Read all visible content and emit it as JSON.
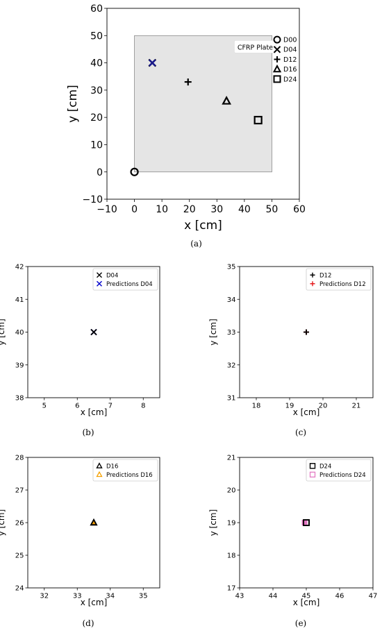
{
  "chart_data": [
    {
      "id": "a",
      "type": "scatter",
      "caption": "(a)",
      "xlabel": "x [cm]",
      "ylabel": "y [cm]",
      "xlim": [
        -10,
        60
      ],
      "ylim": [
        -10,
        60
      ],
      "xticks": [
        -10,
        0,
        10,
        20,
        30,
        40,
        50,
        60
      ],
      "yticks": [
        -10,
        0,
        10,
        20,
        30,
        40,
        50,
        60
      ],
      "xtick_labels": [
        "−10",
        "0",
        "10",
        "20",
        "30",
        "40",
        "50",
        "60"
      ],
      "ytick_labels": [
        "−10",
        "0",
        "10",
        "20",
        "30",
        "40",
        "50",
        "60"
      ],
      "grid": false,
      "plate": {
        "x": [
          0,
          50
        ],
        "y": [
          0,
          50
        ],
        "label": "CFRP Plate",
        "color": "#e5e5e5"
      },
      "legend_position": "outside-right",
      "series": [
        {
          "name": "D00",
          "marker": "circle",
          "x": 0,
          "y": 0,
          "color": "#000000"
        },
        {
          "name": "D04",
          "marker": "x",
          "x": 6.5,
          "y": 40,
          "color": "#000000"
        },
        {
          "name": "",
          "marker": "x",
          "x": 6.5,
          "y": 40,
          "color": "#1a1a8a"
        },
        {
          "name": "D12",
          "marker": "plus",
          "x": 19.5,
          "y": 33,
          "color": "#000000"
        },
        {
          "name": "D16",
          "marker": "triangle",
          "x": 33.5,
          "y": 26,
          "color": "#000000"
        },
        {
          "name": "D24",
          "marker": "square",
          "x": 45,
          "y": 19,
          "color": "#000000"
        }
      ]
    },
    {
      "id": "b",
      "type": "scatter",
      "caption": "(b)",
      "xlabel": "x [cm]",
      "ylabel": "y [cm]",
      "xlim": [
        4.5,
        8.5
      ],
      "ylim": [
        38,
        42
      ],
      "xticks": [
        5,
        6,
        7,
        8
      ],
      "yticks": [
        38,
        39,
        40,
        41,
        42
      ],
      "legend_position": "top-right",
      "series": [
        {
          "name": "D04",
          "marker": "x",
          "x": 6.5,
          "y": 40,
          "color": "#000000"
        },
        {
          "name": "Predictions D04",
          "marker": "x",
          "x": 6.5,
          "y": 40,
          "color": "#0000cc"
        }
      ]
    },
    {
      "id": "c",
      "type": "scatter",
      "caption": "(c)",
      "xlabel": "x [cm]",
      "ylabel": "y [cm]",
      "xlim": [
        17.5,
        21.5
      ],
      "ylim": [
        31,
        35
      ],
      "xticks": [
        18,
        19,
        20,
        21
      ],
      "yticks": [
        31,
        32,
        33,
        34,
        35
      ],
      "legend_position": "top-right",
      "series": [
        {
          "name": "D12",
          "marker": "plus",
          "x": 19.5,
          "y": 33,
          "color": "#000000"
        },
        {
          "name": "Predictions D12",
          "marker": "plus",
          "x": 19.5,
          "y": 33,
          "color": "#e41a1c"
        }
      ]
    },
    {
      "id": "d",
      "type": "scatter",
      "caption": "(d)",
      "xlabel": "x [cm]",
      "ylabel": "y [cm]",
      "xlim": [
        31.5,
        35.5
      ],
      "ylim": [
        24,
        28
      ],
      "xticks": [
        32,
        33,
        34,
        35
      ],
      "yticks": [
        24,
        25,
        26,
        27,
        28
      ],
      "legend_position": "top-right",
      "series": [
        {
          "name": "D16",
          "marker": "triangle",
          "x": 33.5,
          "y": 26,
          "color": "#000000"
        },
        {
          "name": "Predictions D16",
          "marker": "triangle",
          "x": 33.5,
          "y": 26,
          "color": "#f5a000"
        }
      ]
    },
    {
      "id": "e",
      "type": "scatter",
      "caption": "(e)",
      "xlabel": "x [cm]",
      "ylabel": "y [cm]",
      "xlim": [
        43,
        47
      ],
      "ylim": [
        17,
        21
      ],
      "xticks": [
        43,
        44,
        45,
        46,
        47
      ],
      "yticks": [
        17,
        18,
        19,
        20,
        21
      ],
      "legend_position": "top-right",
      "series": [
        {
          "name": "D24",
          "marker": "square",
          "x": 45,
          "y": 19,
          "color": "#000000"
        },
        {
          "name": "Predictions D24",
          "marker": "square",
          "x": 44.95,
          "y": 19,
          "color": "#e377c2"
        }
      ]
    }
  ]
}
